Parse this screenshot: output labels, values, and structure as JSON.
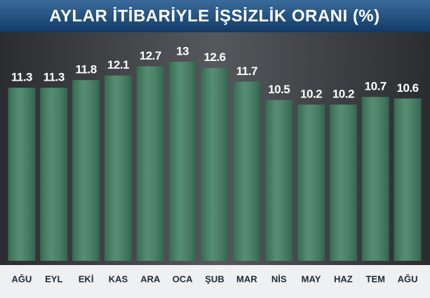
{
  "chart_data": {
    "type": "bar",
    "title": "AYLAR İTİBARİYLE İŞSİZLİK ORANI (%)",
    "categories": [
      "AĞU",
      "EYL",
      "EKİ",
      "KAS",
      "ARA",
      "OCA",
      "ŞUB",
      "MAR",
      "NİS",
      "MAY",
      "HAZ",
      "TEM",
      "AĞU"
    ],
    "values": [
      11.3,
      11.3,
      11.8,
      12.1,
      12.7,
      13,
      12.6,
      11.7,
      10.5,
      10.2,
      10.2,
      10.7,
      10.6
    ],
    "color": "#3f7d5f"
  }
}
